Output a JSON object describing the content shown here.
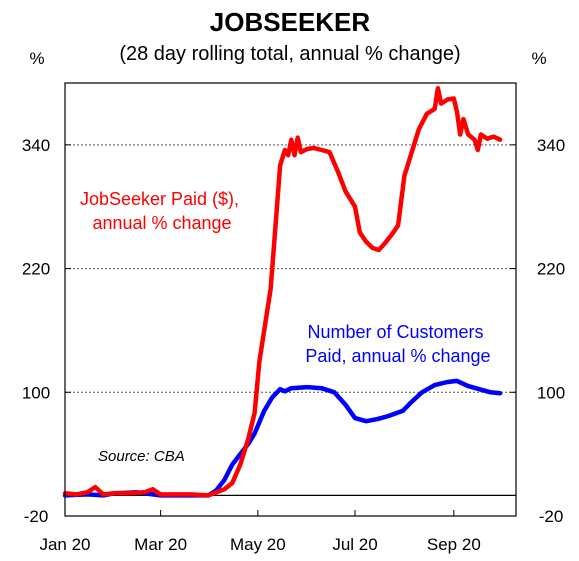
{
  "chart_data": {
    "type": "line",
    "title": "JOBSEEKER",
    "subtitle": "(28 day rolling total, annual % change)",
    "y_unit_left": "%",
    "y_unit_right": "%",
    "ylim": [
      -20,
      400
    ],
    "yticks": [
      -20,
      100,
      220,
      340
    ],
    "ytick_labels": [
      "-20",
      "100",
      "220",
      "340"
    ],
    "xlim": [
      "2020-01-01",
      "2020-10-10"
    ],
    "xticks": [
      "2020-01-01",
      "2020-03-01",
      "2020-05-01",
      "2020-07-01",
      "2020-09-01"
    ],
    "xtick_labels": [
      "Jan 20",
      "Mar 20",
      "May 20",
      "Jul 20",
      "Sep 20"
    ],
    "gridlines": "dotted horizontal at 100, 220, 340",
    "zero_line": 0,
    "source": "Source: CBA",
    "series": [
      {
        "name": "JobSeeker Paid ($), annual % change",
        "label_lines": [
          "JobSeeker Paid ($),",
          "annual % change"
        ],
        "color": "#ff0000",
        "points": [
          [
            "2020-01-01",
            2
          ],
          [
            "2020-01-08",
            1
          ],
          [
            "2020-01-15",
            3
          ],
          [
            "2020-01-20",
            8
          ],
          [
            "2020-01-25",
            1
          ],
          [
            "2020-02-01",
            2
          ],
          [
            "2020-02-10",
            2
          ],
          [
            "2020-02-20",
            3
          ],
          [
            "2020-02-25",
            6
          ],
          [
            "2020-03-01",
            1
          ],
          [
            "2020-03-10",
            1
          ],
          [
            "2020-03-20",
            1
          ],
          [
            "2020-03-31",
            0
          ],
          [
            "2020-04-05",
            3
          ],
          [
            "2020-04-10",
            6
          ],
          [
            "2020-04-15",
            12
          ],
          [
            "2020-04-20",
            30
          ],
          [
            "2020-04-25",
            55
          ],
          [
            "2020-04-29",
            80
          ],
          [
            "2020-05-02",
            130
          ],
          [
            "2020-05-05",
            160
          ],
          [
            "2020-05-09",
            200
          ],
          [
            "2020-05-12",
            260
          ],
          [
            "2020-05-15",
            320
          ],
          [
            "2020-05-18",
            335
          ],
          [
            "2020-05-20",
            330
          ],
          [
            "2020-05-22",
            345
          ],
          [
            "2020-05-24",
            330
          ],
          [
            "2020-05-26",
            347
          ],
          [
            "2020-05-28",
            333
          ],
          [
            "2020-06-01",
            336
          ],
          [
            "2020-06-05",
            337
          ],
          [
            "2020-06-10",
            335
          ],
          [
            "2020-06-15",
            333
          ],
          [
            "2020-06-20",
            315
          ],
          [
            "2020-06-25",
            295
          ],
          [
            "2020-07-01",
            280
          ],
          [
            "2020-07-04",
            255
          ],
          [
            "2020-07-08",
            246
          ],
          [
            "2020-07-12",
            240
          ],
          [
            "2020-07-16",
            238
          ],
          [
            "2020-07-20",
            245
          ],
          [
            "2020-07-25",
            255
          ],
          [
            "2020-07-28",
            262
          ],
          [
            "2020-08-01",
            310
          ],
          [
            "2020-08-05",
            330
          ],
          [
            "2020-08-10",
            355
          ],
          [
            "2020-08-15",
            370
          ],
          [
            "2020-08-20",
            375
          ],
          [
            "2020-08-22",
            395
          ],
          [
            "2020-08-24",
            380
          ],
          [
            "2020-08-28",
            384
          ],
          [
            "2020-09-01",
            385
          ],
          [
            "2020-09-03",
            372
          ],
          [
            "2020-09-05",
            350
          ],
          [
            "2020-09-07",
            365
          ],
          [
            "2020-09-10",
            350
          ],
          [
            "2020-09-14",
            345
          ],
          [
            "2020-09-16",
            335
          ],
          [
            "2020-09-18",
            350
          ],
          [
            "2020-09-22",
            346
          ],
          [
            "2020-09-26",
            348
          ],
          [
            "2020-09-30",
            345
          ]
        ]
      },
      {
        "name": "Number of Customers Paid, annual % change",
        "label_lines": [
          "Number of Customers",
          "Paid, annual % change"
        ],
        "color": "#0000ff",
        "points": [
          [
            "2020-01-01",
            0
          ],
          [
            "2020-01-15",
            1
          ],
          [
            "2020-01-25",
            0
          ],
          [
            "2020-02-01",
            2
          ],
          [
            "2020-02-15",
            3
          ],
          [
            "2020-02-25",
            1
          ],
          [
            "2020-03-01",
            0
          ],
          [
            "2020-03-15",
            0
          ],
          [
            "2020-03-31",
            0
          ],
          [
            "2020-04-05",
            5
          ],
          [
            "2020-04-10",
            15
          ],
          [
            "2020-04-15",
            30
          ],
          [
            "2020-04-20",
            40
          ],
          [
            "2020-04-25",
            50
          ],
          [
            "2020-04-29",
            60
          ],
          [
            "2020-05-05",
            82
          ],
          [
            "2020-05-10",
            95
          ],
          [
            "2020-05-15",
            103
          ],
          [
            "2020-05-18",
            101
          ],
          [
            "2020-05-22",
            104
          ],
          [
            "2020-06-01",
            105
          ],
          [
            "2020-06-10",
            104
          ],
          [
            "2020-06-18",
            100
          ],
          [
            "2020-06-25",
            88
          ],
          [
            "2020-07-01",
            75
          ],
          [
            "2020-07-08",
            72
          ],
          [
            "2020-07-15",
            74
          ],
          [
            "2020-07-22",
            77
          ],
          [
            "2020-07-31",
            82
          ],
          [
            "2020-08-05",
            90
          ],
          [
            "2020-08-12",
            100
          ],
          [
            "2020-08-20",
            107
          ],
          [
            "2020-08-28",
            110
          ],
          [
            "2020-09-03",
            111
          ],
          [
            "2020-09-10",
            106
          ],
          [
            "2020-09-17",
            103
          ],
          [
            "2020-09-24",
            100
          ],
          [
            "2020-09-30",
            99
          ]
        ]
      }
    ]
  }
}
